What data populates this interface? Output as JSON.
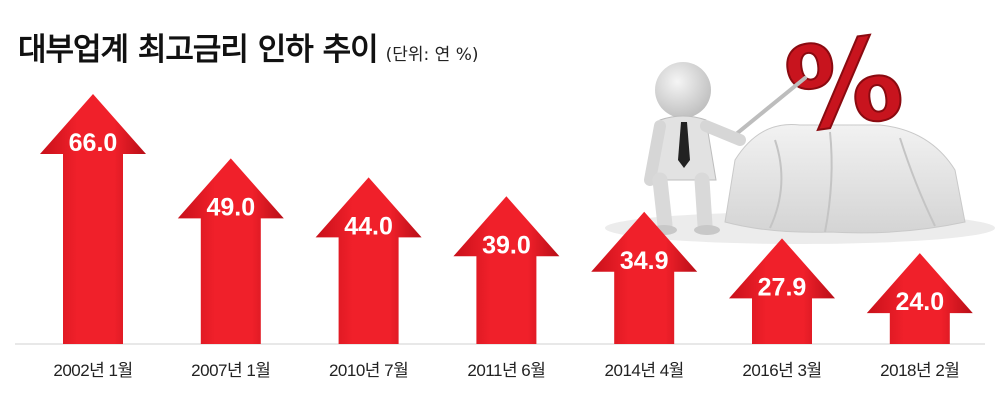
{
  "chart_data": {
    "type": "bar",
    "title": "대부업계 최고금리 인하 추이",
    "unit": "(단위: 연 %)",
    "categories": [
      "2002년 1월",
      "2007년 1월",
      "2010년 7월",
      "2011년 6월",
      "2014년 4월",
      "2016년 3월",
      "2018년 2월"
    ],
    "values": [
      66.0,
      49.0,
      44.0,
      39.0,
      34.9,
      27.9,
      24.0
    ],
    "value_labels": [
      "66.0",
      "49.0",
      "44.0",
      "39.0",
      "34.9",
      "27.9",
      "24.0"
    ],
    "bar_shape": "up-arrow",
    "grid": false,
    "legend": "none"
  },
  "colors": {
    "bar_light": "#f0202a",
    "bar_dark": "#c8101a",
    "text": "#222222",
    "baseline": "#d0d0d0"
  },
  "illustration": {
    "icon": "presenter-with-percent-sign-icon",
    "glyph": "%"
  }
}
